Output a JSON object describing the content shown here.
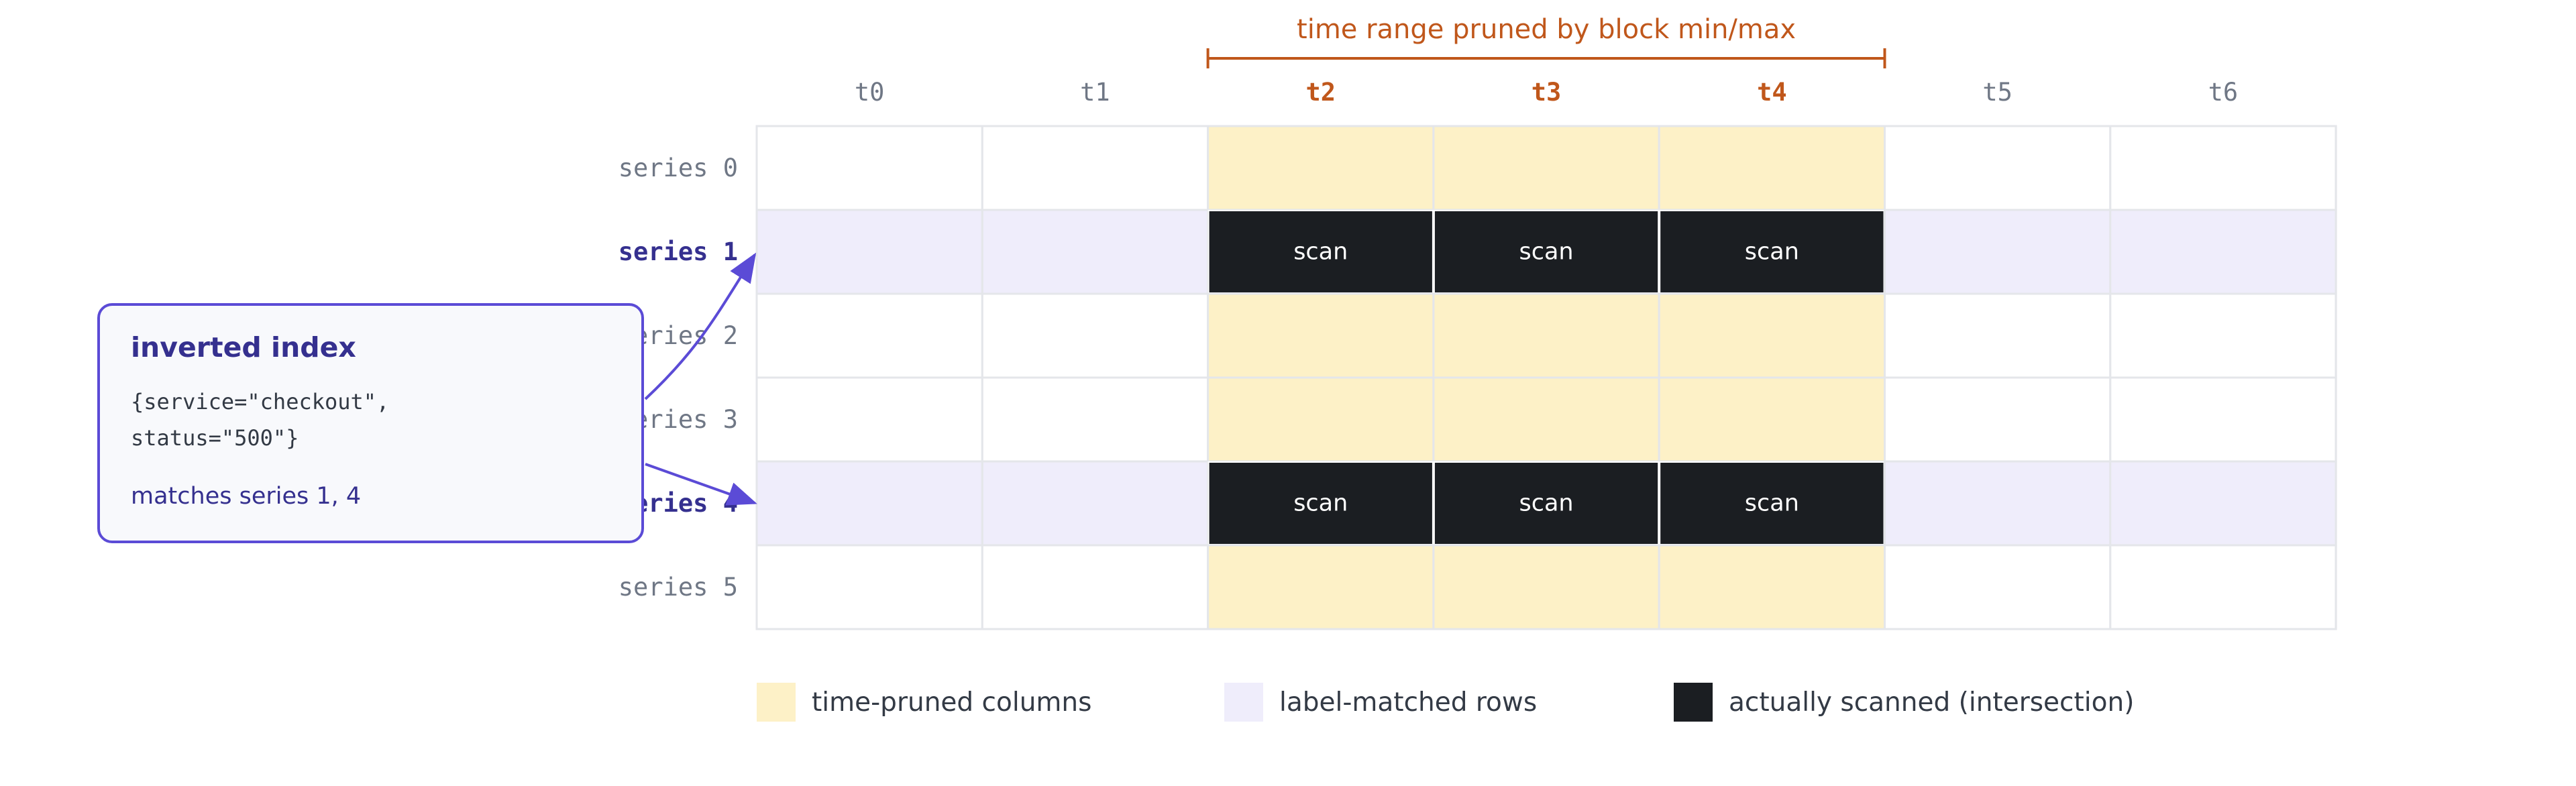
{
  "banner": {
    "label": "time range pruned by block min/max"
  },
  "columns": [
    {
      "label": "t0",
      "pruned": false
    },
    {
      "label": "t1",
      "pruned": false
    },
    {
      "label": "t2",
      "pruned": true
    },
    {
      "label": "t3",
      "pruned": true
    },
    {
      "label": "t4",
      "pruned": true
    },
    {
      "label": "t5",
      "pruned": false
    },
    {
      "label": "t6",
      "pruned": false
    }
  ],
  "rows": [
    {
      "label": "series 0",
      "matched": false
    },
    {
      "label": "series 1",
      "matched": true
    },
    {
      "label": "series 2",
      "matched": false
    },
    {
      "label": "series 3",
      "matched": false
    },
    {
      "label": "series 4",
      "matched": true
    },
    {
      "label": "series 5",
      "matched": false
    }
  ],
  "scan_label": "scan",
  "index_box": {
    "title": "inverted index",
    "query_line1": "{service=\"checkout\",",
    "query_line2": "status=\"500\"}",
    "match_text": "matches series 1, 4"
  },
  "legend": [
    {
      "label": "time-pruned columns",
      "color": "#fdf1c7"
    },
    {
      "label": "label-matched rows",
      "color": "#efedfb"
    },
    {
      "label": "actually scanned (intersection)",
      "color": "#1b1e22"
    }
  ],
  "colors": {
    "pruned_cell": "#fdf1c7",
    "matched_cell": "#efedfb",
    "scan_cell": "#1b1e22",
    "grid_line": "#e4e6ea",
    "accent_orange": "#c0571b",
    "accent_purple": "#5b4bd6",
    "label_gray": "#6f7785",
    "label_purple": "#35308f"
  }
}
